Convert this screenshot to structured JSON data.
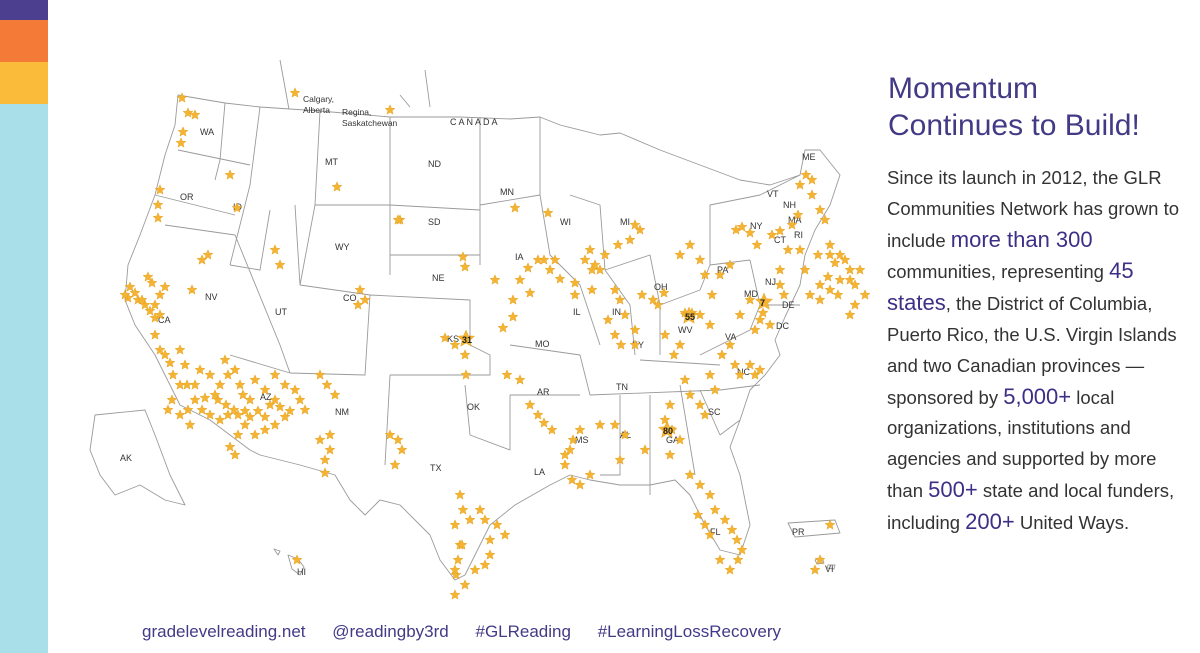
{
  "sidebar": {
    "colors": [
      "#4d3f8f",
      "#f47a37",
      "#fbbb3a",
      "#a9dfe8"
    ]
  },
  "headline": {
    "line1": "Momentum",
    "line2": "Continues to Build!"
  },
  "body": {
    "s1": "Since its launch in 2012, the GLR Communities Network has grown to include ",
    "h1": "more than 300",
    "s2": " communities, representing ",
    "h2": "45 states",
    "s3": ", the District of Columbia, Puerto Rico, the U.S. Virgin Islands and two Canadian provinces — sponsored by ",
    "h3": "5,000+",
    "s4": " local organizations, institutions and agencies and supported by more than ",
    "h4": "500+",
    "s5": " state and local funders, including ",
    "h5": "200+",
    "s6": " United Ways."
  },
  "footer": {
    "website": "gradelevelreading.net",
    "handle": "@readingby3rd",
    "tag1": "#GLReading",
    "tag2": "#LearningLossRecovery"
  },
  "map": {
    "country_label": "C A N A D A",
    "city1_line1": "Calgary,",
    "city1_line2": "Alberta",
    "city2_line1": "Regina,",
    "city2_line2": "Saskatchewan",
    "count_ks": "31",
    "count_wv": "55",
    "count_md": "7",
    "count_ga": "80",
    "state_labels": [
      {
        "abbr": "WA"
      },
      {
        "abbr": "OR"
      },
      {
        "abbr": "ID"
      },
      {
        "abbr": "MT"
      },
      {
        "abbr": "ND"
      },
      {
        "abbr": "MN"
      },
      {
        "abbr": "WY"
      },
      {
        "abbr": "SD"
      },
      {
        "abbr": "NE"
      },
      {
        "abbr": "IA"
      },
      {
        "abbr": "WI"
      },
      {
        "abbr": "MI"
      },
      {
        "abbr": "NV"
      },
      {
        "abbr": "UT"
      },
      {
        "abbr": "CO"
      },
      {
        "abbr": "KS"
      },
      {
        "abbr": "MO"
      },
      {
        "abbr": "IL"
      },
      {
        "abbr": "IN"
      },
      {
        "abbr": "OH"
      },
      {
        "abbr": "PA"
      },
      {
        "abbr": "NY"
      },
      {
        "abbr": "CA"
      },
      {
        "abbr": "AZ"
      },
      {
        "abbr": "NM"
      },
      {
        "abbr": "OK"
      },
      {
        "abbr": "AR"
      },
      {
        "abbr": "TN"
      },
      {
        "abbr": "KY"
      },
      {
        "abbr": "WV"
      },
      {
        "abbr": "VA"
      },
      {
        "abbr": "NC"
      },
      {
        "abbr": "SC"
      },
      {
        "abbr": "GA"
      },
      {
        "abbr": "AL"
      },
      {
        "abbr": "MS"
      },
      {
        "abbr": "LA"
      },
      {
        "abbr": "TX"
      },
      {
        "abbr": "FL"
      },
      {
        "abbr": "AK"
      },
      {
        "abbr": "HI"
      },
      {
        "abbr": "ME"
      },
      {
        "abbr": "VT"
      },
      {
        "abbr": "NH"
      },
      {
        "abbr": "MA"
      },
      {
        "abbr": "CT"
      },
      {
        "abbr": "RI"
      },
      {
        "abbr": "NJ"
      },
      {
        "abbr": "DE"
      },
      {
        "abbr": "MD"
      },
      {
        "abbr": "DC"
      },
      {
        "abbr": "PR"
      },
      {
        "abbr": "VI"
      }
    ],
    "marker_color": "#f4b433"
  }
}
